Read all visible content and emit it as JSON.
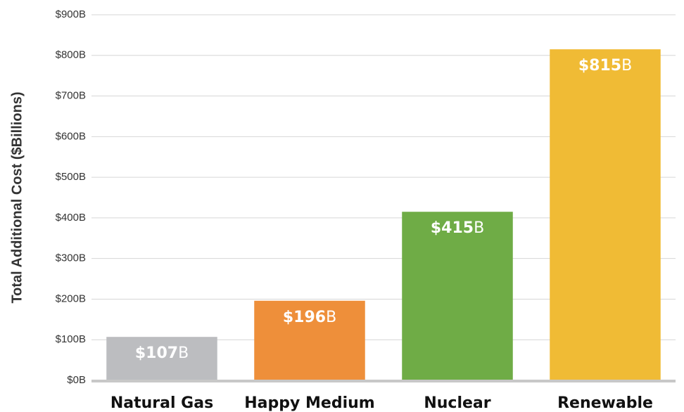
{
  "chart_data": {
    "type": "bar",
    "y_axis_label": "Total Additional Cost ($Billions)",
    "categories": [
      "Natural Gas",
      "Happy Medium",
      "Nuclear",
      "Renewable"
    ],
    "values": [
      107,
      196,
      415,
      815
    ],
    "value_labels": [
      "$107B",
      "$196B",
      "$415B",
      "$815B"
    ],
    "colors": [
      "#bcbdc0",
      "#ee8f3a",
      "#6fac46",
      "#f0bb35"
    ],
    "ylim": [
      0,
      900
    ],
    "yticks": [
      {
        "value": 0,
        "label": "$0B"
      },
      {
        "value": 100,
        "label": "$100B"
      },
      {
        "value": 200,
        "label": "$200B"
      },
      {
        "value": 300,
        "label": "$300B"
      },
      {
        "value": 400,
        "label": "$400B"
      },
      {
        "value": 500,
        "label": "$500B"
      },
      {
        "value": 600,
        "label": "$600B"
      },
      {
        "value": 700,
        "label": "$700B"
      },
      {
        "value": 800,
        "label": "$800B"
      },
      {
        "value": 900,
        "label": "$900B"
      }
    ],
    "grid": true
  }
}
